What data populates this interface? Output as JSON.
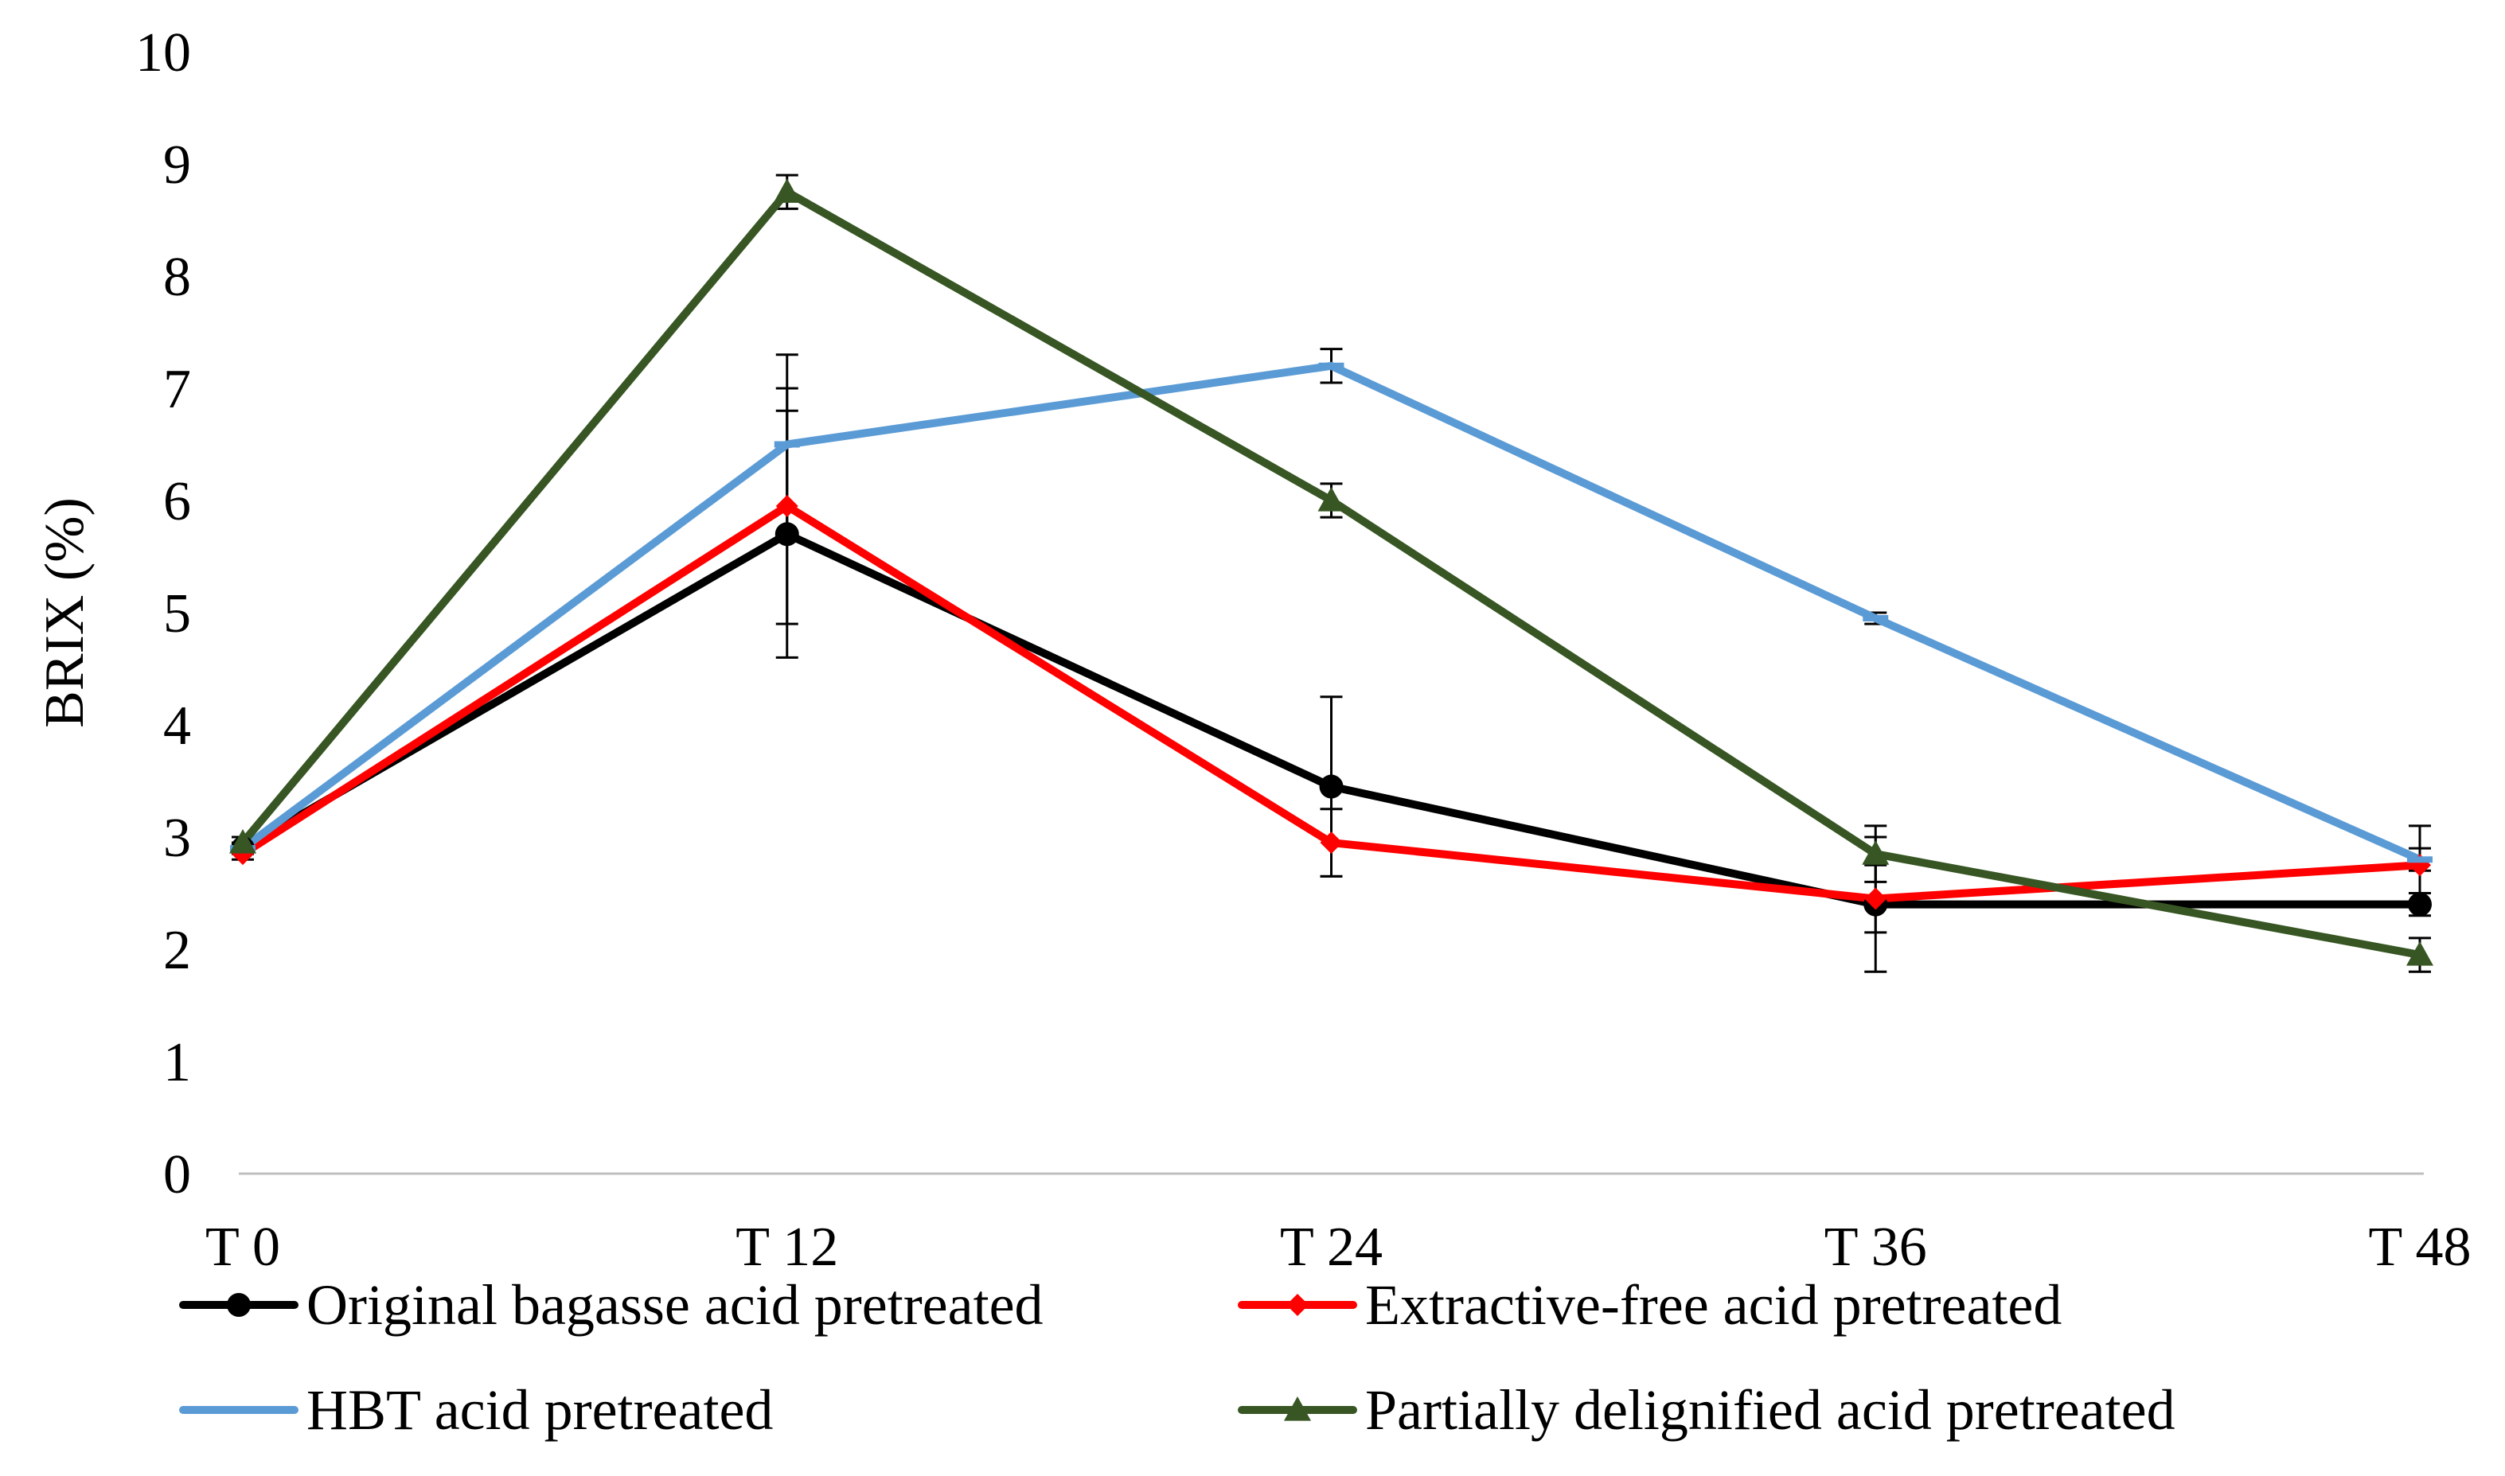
{
  "chart_data": {
    "type": "line",
    "title": "",
    "xlabel": "",
    "ylabel": "BRIX  (%)",
    "categories": [
      "T 0",
      "T 12",
      "T 24",
      "T 36",
      "T 48"
    ],
    "ylim": [
      0,
      10
    ],
    "yticks": [
      "0",
      "1",
      "2",
      "3",
      "4",
      "5",
      "6",
      "7",
      "8",
      "9",
      "10"
    ],
    "grid": false,
    "legend_position": "bottom",
    "series": [
      {
        "name": "Original bagasse acid pretreated",
        "color": "#000000",
        "marker": "circle",
        "values": [
          2.9,
          5.7,
          3.45,
          2.4,
          2.4
        ],
        "errors": [
          0.05,
          1.1,
          0.8,
          0.6,
          0.1
        ]
      },
      {
        "name": "Extractive-free acid pretreated",
        "color": "#ff0000",
        "marker": "diamond",
        "values": [
          2.85,
          5.95,
          2.95,
          2.45,
          2.75
        ],
        "errors": [
          0.05,
          1.05,
          0.3,
          0.3,
          0.35
        ]
      },
      {
        "name": "HBT acid pretreated",
        "color": "#5b9bd5",
        "marker": "dash",
        "values": [
          2.9,
          6.5,
          7.2,
          4.95,
          2.8
        ],
        "errors": [
          0.05,
          0.8,
          0.15,
          0.05,
          0.1
        ]
      },
      {
        "name": "Partially delignified acid pretreated",
        "color": "#375623",
        "marker": "triangle",
        "values": [
          2.95,
          8.75,
          6.0,
          2.85,
          1.95
        ],
        "errors": [
          0.05,
          0.15,
          0.15,
          0.25,
          0.15
        ]
      }
    ]
  }
}
